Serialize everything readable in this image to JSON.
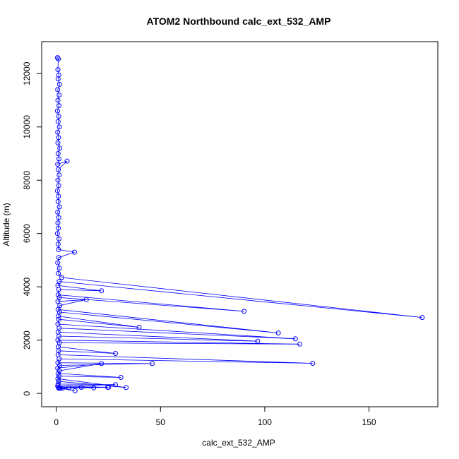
{
  "chart_data": {
    "type": "line",
    "title": "ATOM2 Northbound calc_ext_532_AMP",
    "xlabel": "calc_ext_532_AMP",
    "ylabel": "Altitude (m)",
    "xlim": [
      -7,
      183
    ],
    "ylim": [
      -500,
      13200
    ],
    "xticks": [
      0,
      50,
      100,
      150
    ],
    "yticks": [
      0,
      2000,
      4000,
      6000,
      8000,
      10000,
      12000
    ],
    "grid": false,
    "marker": "open-circle",
    "colors": {
      "series": "#0000ff",
      "axis": "#000000"
    },
    "series": [
      {
        "points": [
          [
            0.6,
            12600
          ],
          [
            1.0,
            12550
          ],
          [
            0.8,
            12150
          ],
          [
            1.2,
            11950
          ],
          [
            0.9,
            11800
          ],
          [
            1.6,
            11600
          ],
          [
            0.7,
            11400
          ],
          [
            1.4,
            11200
          ],
          [
            0.8,
            11000
          ],
          [
            1.3,
            10800
          ],
          [
            0.6,
            10600
          ],
          [
            1.2,
            10400
          ],
          [
            0.9,
            10200
          ],
          [
            1.5,
            10000
          ],
          [
            0.7,
            9800
          ],
          [
            1.1,
            9600
          ],
          [
            0.8,
            9400
          ],
          [
            1.7,
            9200
          ],
          [
            0.9,
            9000
          ],
          [
            1.3,
            8800
          ],
          [
            0.7,
            8600
          ],
          [
            5.2,
            8720
          ],
          [
            1.0,
            8400
          ],
          [
            1.4,
            8200
          ],
          [
            0.8,
            8000
          ],
          [
            1.2,
            7800
          ],
          [
            0.6,
            7600
          ],
          [
            1.1,
            7400
          ],
          [
            0.9,
            7200
          ],
          [
            1.5,
            7000
          ],
          [
            0.7,
            6800
          ],
          [
            1.2,
            6600
          ],
          [
            0.8,
            6400
          ],
          [
            1.0,
            6200
          ],
          [
            0.6,
            6000
          ],
          [
            1.3,
            5800
          ],
          [
            0.9,
            5600
          ],
          [
            1.1,
            5400
          ],
          [
            8.7,
            5300
          ],
          [
            1.2,
            5100
          ],
          [
            0.7,
            4900
          ],
          [
            1.5,
            4700
          ],
          [
            1.0,
            4500
          ],
          [
            2.6,
            4350
          ],
          [
            175.5,
            2850
          ],
          [
            1.4,
            4200
          ],
          [
            0.8,
            4050
          ],
          [
            21.7,
            3850
          ],
          [
            1.2,
            3900
          ],
          [
            0.9,
            3700
          ],
          [
            90.1,
            3080
          ],
          [
            1.5,
            3600
          ],
          [
            0.8,
            3450
          ],
          [
            14.4,
            3520
          ],
          [
            1.7,
            3300
          ],
          [
            0.9,
            3150
          ],
          [
            106.5,
            2270
          ],
          [
            1.6,
            3050
          ],
          [
            1.0,
            2900
          ],
          [
            39.7,
            2480
          ],
          [
            1.2,
            2780
          ],
          [
            0.8,
            2600
          ],
          [
            114.7,
            2050
          ],
          [
            1.4,
            2450
          ],
          [
            0.9,
            2300
          ],
          [
            96.6,
            1960
          ],
          [
            1.3,
            2150
          ],
          [
            0.8,
            2000
          ],
          [
            116.8,
            1850
          ],
          [
            1.5,
            1900
          ],
          [
            1.0,
            1750
          ],
          [
            28.4,
            1500
          ],
          [
            1.2,
            1600
          ],
          [
            0.9,
            1450
          ],
          [
            123.0,
            1130
          ],
          [
            1.4,
            1300
          ],
          [
            0.8,
            1150
          ],
          [
            46.0,
            1120
          ],
          [
            1.6,
            1050
          ],
          [
            0.7,
            950
          ],
          [
            21.7,
            1120
          ],
          [
            1.5,
            850
          ],
          [
            0.9,
            750
          ],
          [
            31.0,
            600
          ],
          [
            1.3,
            650
          ],
          [
            0.8,
            550
          ],
          [
            33.5,
            220
          ],
          [
            1.2,
            450
          ],
          [
            0.9,
            350
          ],
          [
            28.4,
            330
          ],
          [
            0.7,
            280
          ],
          [
            24.7,
            230
          ],
          [
            1.1,
            230
          ],
          [
            9.0,
            100
          ],
          [
            1.5,
            200
          ],
          [
            12.0,
            230
          ],
          [
            18.0,
            210
          ],
          [
            2.0,
            200
          ],
          [
            25.0,
            230
          ],
          [
            6.0,
            210
          ],
          [
            3.0,
            200
          ],
          [
            1.2,
            200
          ]
        ]
      }
    ]
  }
}
